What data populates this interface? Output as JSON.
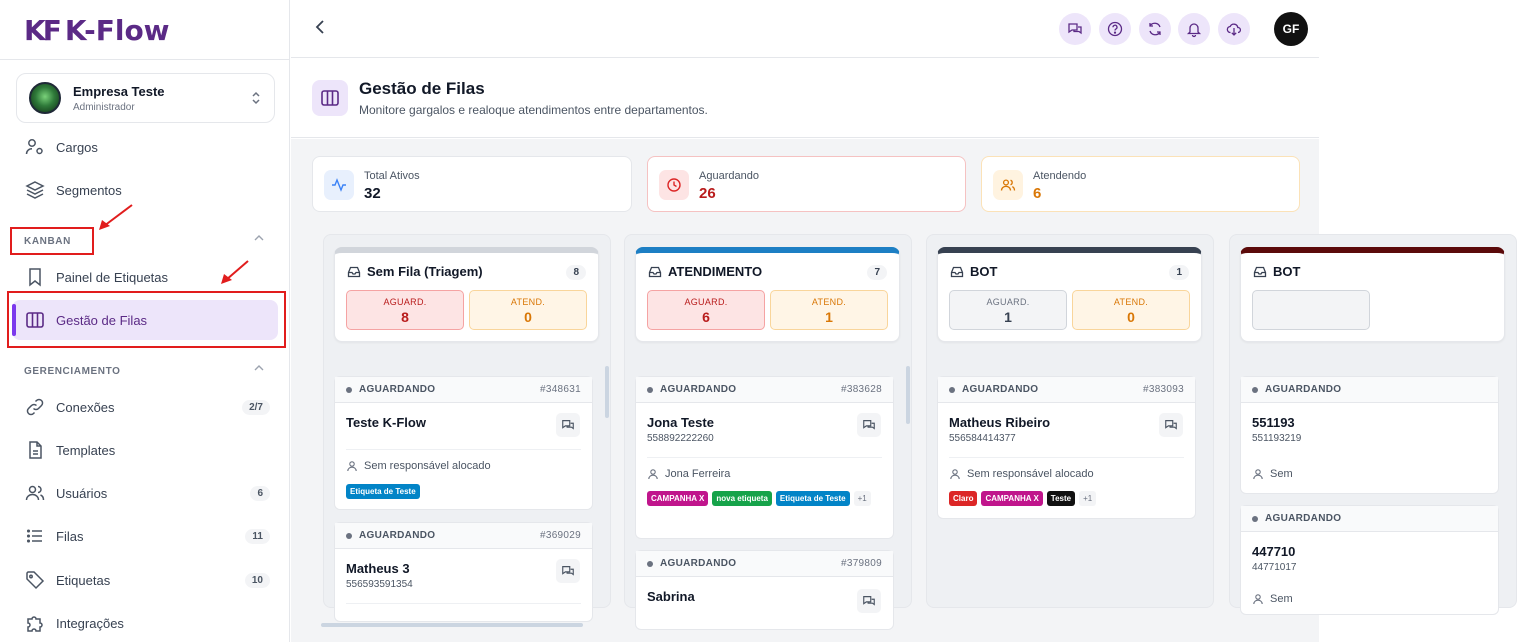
{
  "brand": {
    "mark": "KF",
    "name": "K-Flow"
  },
  "company": {
    "name": "Empresa Teste",
    "role": "Administrador"
  },
  "nav_top": [
    {
      "label": "Cargos",
      "icon": "user-gear-icon"
    },
    {
      "label": "Segmentos",
      "icon": "layers-icon"
    }
  ],
  "sections": {
    "kanban": {
      "title": "KANBAN",
      "items": [
        {
          "label": "Painel de Etiquetas",
          "icon": "bookmark-icon"
        },
        {
          "label": "Gestão de Filas",
          "icon": "columns-icon",
          "active": true
        }
      ]
    },
    "gerenciamento": {
      "title": "GERENCIAMENTO",
      "items": [
        {
          "label": "Conexões",
          "icon": "link-icon",
          "count": "2/7"
        },
        {
          "label": "Templates",
          "icon": "file-icon",
          "count": ""
        },
        {
          "label": "Usuários",
          "icon": "users-icon",
          "count": "6"
        },
        {
          "label": "Filas",
          "icon": "list-icon",
          "count": "11"
        },
        {
          "label": "Etiquetas",
          "icon": "tag-icon",
          "count": "10"
        },
        {
          "label": "Integrações",
          "icon": "puzzle-icon",
          "count": ""
        }
      ]
    }
  },
  "user": {
    "initials": "GF"
  },
  "page": {
    "title": "Gestão de Filas",
    "subtitle": "Monitore gargalos e realoque atendimentos entre departamentos."
  },
  "stats": [
    {
      "label": "Total Ativos",
      "value": "32",
      "color": "#111827",
      "icon": "activity-icon",
      "bg": "#e8f0fd",
      "fg": "#3b82f6"
    },
    {
      "label": "Aguardando",
      "value": "26",
      "color": "#b91c1c",
      "icon": "clock-icon",
      "bg": "#fde4e4",
      "fg": "#dc2626"
    },
    {
      "label": "Atendendo",
      "value": "6",
      "color": "#d97706",
      "icon": "users-icon",
      "bg": "#fff3e0",
      "fg": "#d97706"
    }
  ],
  "labels": {
    "aguard": "AGUARD.",
    "atend": "ATEND.",
    "status": "AGUARDANDO"
  },
  "columns": [
    {
      "title": "Sem Fila (Triagem)",
      "count": "8",
      "aguard": "8",
      "atend": "0",
      "color": "#d1d5db",
      "aguard_style": "red",
      "cards": [
        {
          "id": "#348631",
          "name": "Teste K-Flow",
          "phone": "",
          "resp": "Sem responsável alocado",
          "tags": [
            {
              "label": "Etiqueta de Teste",
              "color": "#0284c7"
            }
          ]
        },
        {
          "id": "#369029",
          "name": "Matheus 3",
          "phone": "556593591354",
          "resp": "",
          "tags": []
        }
      ]
    },
    {
      "title": "ATENDIMENTO",
      "count": "7",
      "aguard": "6",
      "atend": "1",
      "color": "#1d7fc4",
      "aguard_style": "red",
      "cards": [
        {
          "id": "#383628",
          "name": "Jona Teste",
          "phone": "558892222260",
          "resp": "Jona Ferreira",
          "tags": [
            {
              "label": "CAMPANHA X",
              "color": "#c0158c"
            },
            {
              "label": "nova etiqueta",
              "color": "#16a34a"
            },
            {
              "label": "Etiqueta de Teste",
              "color": "#0284c7"
            },
            {
              "label": "+1",
              "color": "more"
            }
          ]
        },
        {
          "id": "#379809",
          "name": "Sabrina",
          "phone": "",
          "resp": "",
          "tags": []
        }
      ]
    },
    {
      "title": "BOT",
      "count": "1",
      "aguard": "1",
      "atend": "0",
      "color": "#374151",
      "aguard_style": "gray",
      "cards": [
        {
          "id": "#383093",
          "name": "Matheus Ribeiro",
          "phone": "556584414377",
          "resp": "Sem responsável alocado",
          "tags": [
            {
              "label": "Claro",
              "color": "#dc2626"
            },
            {
              "label": "CAMPANHA X",
              "color": "#c0158c"
            },
            {
              "label": "Teste",
              "color": "#111111"
            },
            {
              "label": "+1",
              "color": "more"
            }
          ]
        }
      ]
    },
    {
      "title": "BOT",
      "count": "",
      "aguard": "",
      "atend": "",
      "color": "#5b0a0a",
      "aguard_style": "gray",
      "cards": [
        {
          "id": "",
          "name": "551193",
          "phone": "551193219",
          "resp": "Sem",
          "tags": []
        },
        {
          "id": "",
          "name": "447710",
          "phone": "44771017",
          "resp": "Sem",
          "tags": []
        }
      ]
    }
  ]
}
